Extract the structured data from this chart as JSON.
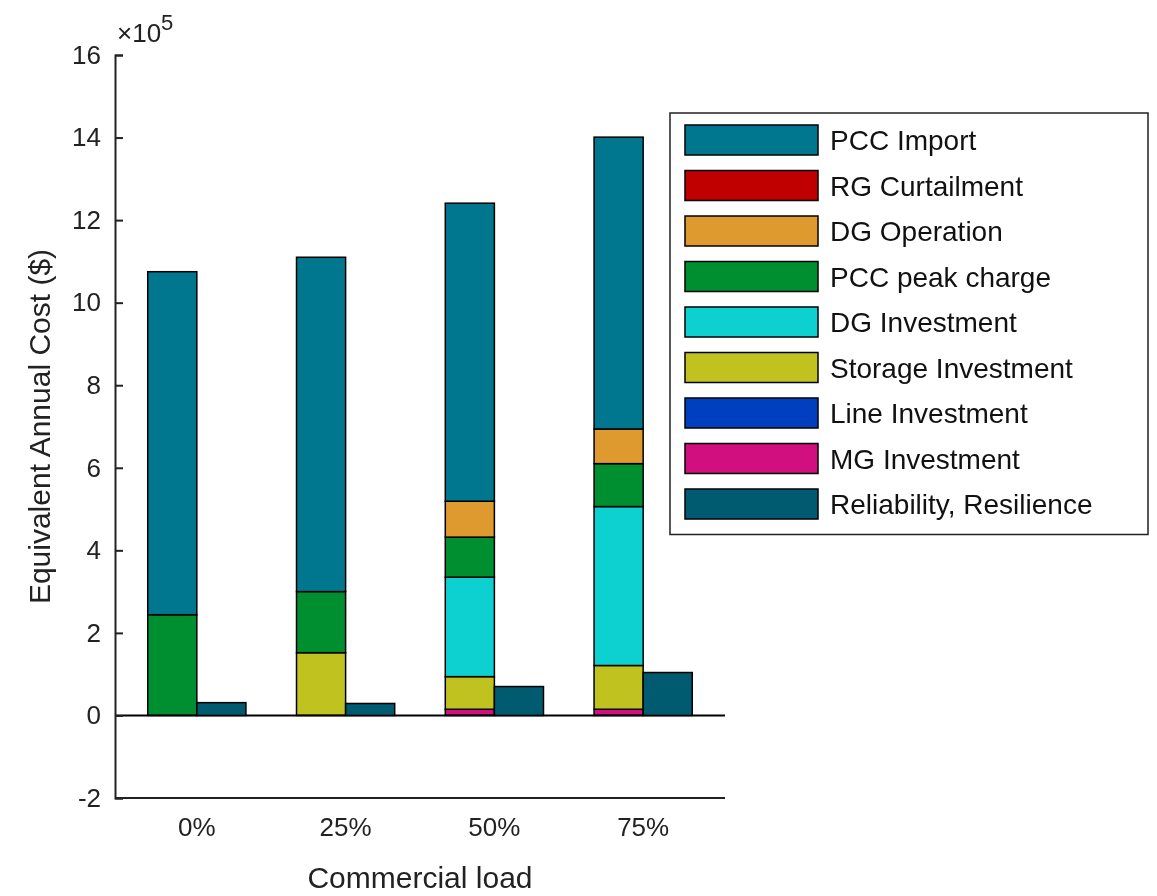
{
  "chart_data": [
    {
      "type": "bar",
      "xlabel": "Commercial load",
      "ylabel": "Equivalent Annual Cost ($)",
      "annotations": [
        "×10$^{5}$"
      ],
      "categories": [
        "0%",
        "25%",
        "50%",
        "75%"
      ],
      "stacked": true,
      "series": [
        {
          "name": "MG Investment",
          "color": "#d10f7f",
          "values": [
            0,
            0,
            0.15,
            0.15
          ]
        },
        {
          "name": "Line Investment",
          "color": "#0040c0",
          "values": [
            0,
            0,
            null,
            null
          ]
        },
        {
          "name": "Storage Investment",
          "color": "#bfc21f",
          "values": [
            0,
            1.52,
            0.79,
            1.06
          ]
        },
        {
          "name": "DG Investment",
          "color": "#0dd1d0",
          "values": [
            0,
            0,
            2.41,
            3.85
          ]
        },
        {
          "name": "PCC peak charge",
          "color": "#008f30",
          "values": [
            2.44,
            1.48,
            0.97,
            1.04
          ]
        },
        {
          "name": "DG Operation",
          "color": "#de9a2e",
          "values": [
            0,
            0,
            0.87,
            0.84
          ]
        },
        {
          "name": "RG Curtailment",
          "color": "#c00000",
          "values": [
            0,
            0,
            0,
            0
          ]
        },
        {
          "name": "PCC Import",
          "color": "#00778f",
          "values": [
            8.31,
            8.1,
            7.22,
            7.07
          ]
        }
      ],
      "ylim": [
        -2,
        16
      ],
      "yticks": [
        -2,
        0,
        2,
        4,
        6,
        8,
        10,
        12,
        14,
        16
      ],
      "ref_lines": [
        {
          "axis": "y",
          "value": 0,
          "color": "#000000"
        }
      ],
      "grid": false,
      "legend": "right"
    },
    {
      "type": "bar",
      "categories": [
        null,
        null,
        null,
        null
      ],
      "series": [
        {
          "name": "Reliability, Resilience",
          "color": "#005a70",
          "values": [
            0.31,
            0.29,
            0.7,
            1.04
          ]
        }
      ],
      "ylim": [
        -2,
        16
      ],
      "yticks": [
        -2,
        0,
        2,
        4,
        6,
        8,
        10,
        12,
        14,
        16
      ],
      "tick_labels": false,
      "legend": "right"
    }
  ]
}
